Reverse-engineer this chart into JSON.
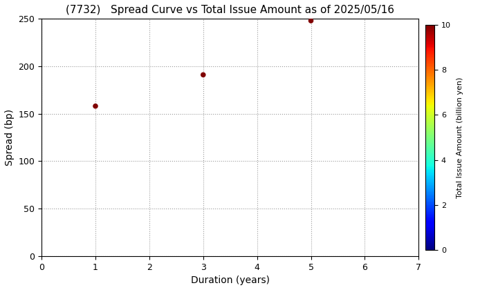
{
  "title": "(7732)   Spread Curve vs Total Issue Amount as of 2025/05/16",
  "xlabel": "Duration (years)",
  "ylabel": "Spread (bp)",
  "colorbar_label": "Total Issue Amount (billion yen)",
  "xlim": [
    0,
    7
  ],
  "ylim": [
    0,
    250
  ],
  "xticks": [
    0,
    1,
    2,
    3,
    4,
    5,
    6,
    7
  ],
  "yticks": [
    0,
    50,
    100,
    150,
    200,
    250
  ],
  "colorbar_ticks": [
    0,
    2,
    4,
    6,
    8,
    10
  ],
  "colorbar_min": 0,
  "colorbar_max": 10,
  "points": [
    {
      "duration": 1,
      "spread": 158,
      "amount": 10.0
    },
    {
      "duration": 3,
      "spread": 191,
      "amount": 10.0
    },
    {
      "duration": 5,
      "spread": 248,
      "amount": 10.0
    }
  ],
  "marker_size": 30,
  "background_color": "#ffffff",
  "grid_color": "#999999",
  "grid_style": "dotted",
  "title_fontsize": 11,
  "axis_fontsize": 10
}
